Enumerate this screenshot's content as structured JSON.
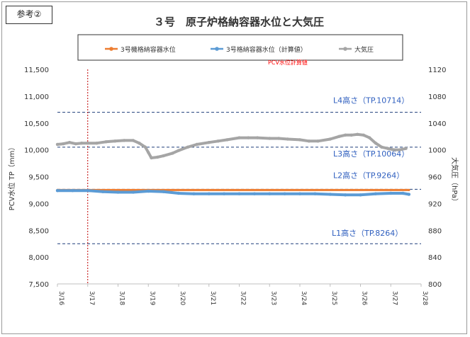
{
  "badge": "参考②",
  "chart_data": {
    "type": "line",
    "title": "３号　原子炉格納容器水位と大気圧",
    "annotation": "PCV水位計算値",
    "ylabel_left": "PCV水位 TP（mm）",
    "ylabel_right": "大気圧（hPa）",
    "x_ticks": [
      "3/16",
      "3/17",
      "3/18",
      "3/19",
      "3/20",
      "3/21",
      "3/22",
      "3/23",
      "3/24",
      "3/25",
      "3/26",
      "3/27",
      "3/28"
    ],
    "x_range": [
      0,
      12
    ],
    "y_left": {
      "min": 7500,
      "max": 11500,
      "ticks": [
        "7,500",
        "8,000",
        "8,500",
        "9,000",
        "9,500",
        "10,000",
        "10,500",
        "11,000",
        "11,500"
      ]
    },
    "y_right": {
      "min": 800,
      "max": 1120,
      "ticks": [
        "800",
        "840",
        "880",
        "920",
        "960",
        "1000",
        "1040",
        "1080",
        "1120"
      ]
    },
    "legend": [
      {
        "name": "3号機格納容器水位",
        "color": "#ed7d31"
      },
      {
        "name": "3号格納容器水位（計算値）",
        "color": "#5b9bd5"
      },
      {
        "name": "大気圧",
        "color": "#a5a5a5"
      }
    ],
    "vertical_marker": {
      "x": 1.0,
      "color": "#c00000"
    },
    "reference_lines": [
      {
        "label": "L4高さ（TP.10714）",
        "value": 10700
      },
      {
        "label": "L3高さ（TP.10064）",
        "value": 10050
      },
      {
        "label": "L2高さ（TP.9264）",
        "value": 9264
      },
      {
        "label": "L1高さ（TP.8264）",
        "value": 8250
      }
    ],
    "series": [
      {
        "name": "3号機格納容器水位",
        "axis": "left",
        "color": "#ed7d31",
        "x": [
          0,
          11.6
        ],
        "y": [
          9250,
          9250
        ]
      },
      {
        "name": "3号格納容器水位（計算値）",
        "axis": "left",
        "color": "#5b9bd5",
        "x": [
          0,
          0.5,
          1.0,
          1.5,
          2.0,
          2.5,
          3.0,
          3.5,
          4.0,
          4.5,
          5.0,
          5.5,
          6.0,
          6.5,
          7.0,
          7.5,
          8.0,
          8.5,
          9.0,
          9.5,
          10.0,
          10.5,
          11.0,
          11.4,
          11.6
        ],
        "y": [
          9240,
          9240,
          9240,
          9220,
          9210,
          9210,
          9230,
          9220,
          9190,
          9180,
          9180,
          9180,
          9180,
          9180,
          9180,
          9180,
          9180,
          9180,
          9170,
          9160,
          9160,
          9180,
          9190,
          9190,
          9170
        ]
      },
      {
        "name": "大気圧",
        "axis": "right",
        "color": "#a5a5a5",
        "x": [
          0,
          0.2,
          0.4,
          0.6,
          0.8,
          1.0,
          1.3,
          1.6,
          1.9,
          2.2,
          2.5,
          2.7,
          2.9,
          3.0,
          3.1,
          3.3,
          3.5,
          3.8,
          4.0,
          4.3,
          4.6,
          5.0,
          5.3,
          5.6,
          6.0,
          6.3,
          6.6,
          7.0,
          7.3,
          7.6,
          8.0,
          8.3,
          8.6,
          9.0,
          9.3,
          9.5,
          9.7,
          9.9,
          10.1,
          10.3,
          10.5,
          10.7,
          10.9,
          11.1,
          11.3,
          11.5
        ],
        "y": [
          1008,
          1009,
          1011,
          1009,
          1010,
          1010,
          1010,
          1012,
          1013,
          1014,
          1014,
          1010,
          1004,
          996,
          988,
          989,
          991,
          995,
          999,
          1004,
          1008,
          1011,
          1013,
          1015,
          1018,
          1018,
          1018,
          1017,
          1017,
          1016,
          1015,
          1013,
          1013,
          1016,
          1020,
          1022,
          1022,
          1023,
          1022,
          1018,
          1010,
          1004,
          1002,
          1000,
          1000,
          1002
        ]
      }
    ]
  }
}
